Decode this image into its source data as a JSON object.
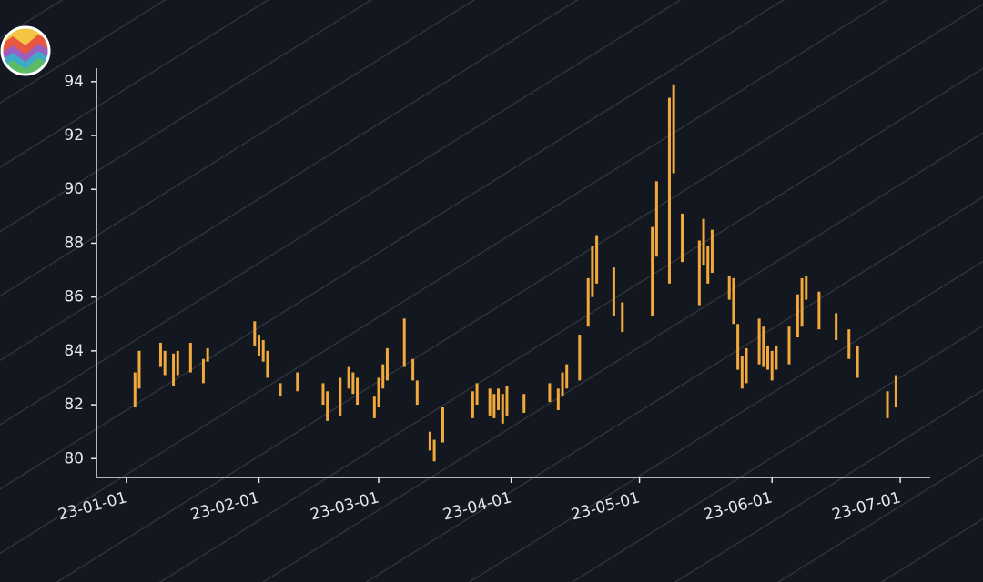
{
  "chart_data": {
    "type": "range-bar",
    "x": [
      "23-01-03",
      "23-01-04",
      "23-01-09",
      "23-01-10",
      "23-01-12",
      "23-01-13",
      "23-01-16",
      "23-01-19",
      "23-01-20",
      "23-01-31",
      "23-02-01",
      "23-02-02",
      "23-02-03",
      "23-02-06",
      "23-02-10",
      "23-02-16",
      "23-02-17",
      "23-02-20",
      "23-02-22",
      "23-02-23",
      "23-02-24",
      "23-02-28",
      "23-03-01",
      "23-03-02",
      "23-03-03",
      "23-03-07",
      "23-03-09",
      "23-03-10",
      "23-03-13",
      "23-03-14",
      "23-03-16",
      "23-03-23",
      "23-03-24",
      "23-03-27",
      "23-03-28",
      "23-03-29",
      "23-03-30",
      "23-03-31",
      "23-04-04",
      "23-04-10",
      "23-04-12",
      "23-04-13",
      "23-04-14",
      "23-04-17",
      "23-04-19",
      "23-04-20",
      "23-04-21",
      "23-04-25",
      "23-04-27",
      "23-05-04",
      "23-05-05",
      "23-05-08",
      "23-05-09",
      "23-05-11",
      "23-05-15",
      "23-05-16",
      "23-05-17",
      "23-05-18",
      "23-05-22",
      "23-05-23",
      "23-05-24",
      "23-05-25",
      "23-05-26",
      "23-05-29",
      "23-05-30",
      "23-05-31",
      "23-06-01",
      "23-06-02",
      "23-06-05",
      "23-06-07",
      "23-06-08",
      "23-06-09",
      "23-06-12",
      "23-06-16",
      "23-06-19",
      "23-06-21",
      "23-06-28",
      "23-06-30"
    ],
    "low": [
      81.9,
      82.6,
      83.4,
      83.1,
      82.7,
      83.1,
      83.2,
      82.8,
      83.6,
      84.2,
      83.8,
      83.6,
      83.0,
      82.3,
      82.5,
      82.0,
      81.4,
      81.6,
      82.6,
      82.4,
      82.0,
      81.5,
      81.9,
      82.6,
      82.9,
      83.4,
      82.9,
      82.0,
      80.3,
      79.9,
      80.6,
      81.5,
      82.0,
      81.6,
      81.5,
      81.8,
      81.3,
      81.6,
      81.7,
      82.1,
      81.8,
      82.3,
      82.6,
      82.9,
      84.9,
      86.0,
      86.5,
      85.3,
      84.7,
      85.3,
      87.5,
      86.5,
      90.6,
      87.3,
      85.7,
      87.2,
      86.5,
      86.9,
      85.9,
      85.0,
      83.3,
      82.6,
      82.8,
      83.5,
      83.4,
      83.3,
      82.9,
      83.3,
      83.5,
      84.5,
      84.9,
      85.9,
      84.8,
      84.4,
      83.7,
      83.0,
      81.5,
      81.9
    ],
    "high": [
      83.2,
      84.0,
      84.3,
      84.0,
      83.9,
      84.0,
      84.3,
      83.7,
      84.1,
      85.1,
      84.6,
      84.4,
      84.0,
      82.8,
      83.2,
      82.8,
      82.5,
      83.0,
      83.4,
      83.2,
      83.0,
      82.3,
      83.0,
      83.5,
      84.1,
      85.2,
      83.7,
      82.9,
      81.0,
      80.7,
      81.9,
      82.5,
      82.8,
      82.6,
      82.4,
      82.6,
      82.4,
      82.7,
      82.4,
      82.8,
      82.6,
      83.2,
      83.5,
      84.6,
      86.7,
      87.9,
      88.3,
      87.1,
      85.8,
      88.6,
      90.3,
      93.4,
      93.9,
      89.1,
      88.1,
      88.9,
      87.9,
      88.5,
      86.8,
      86.7,
      85.0,
      83.8,
      84.1,
      85.2,
      84.9,
      84.2,
      84.0,
      84.2,
      84.9,
      86.1,
      86.7,
      86.8,
      86.2,
      85.4,
      84.8,
      84.2,
      82.5,
      83.1
    ],
    "color": "#f2a93b",
    "xlim": [
      "22-12-25",
      "23-07-08"
    ],
    "xticks": [
      "23-01-01",
      "23-02-01",
      "23-03-01",
      "23-04-01",
      "23-05-01",
      "23-06-01",
      "23-07-01"
    ],
    "ylim": [
      79.3,
      94.5
    ],
    "yticks": [
      80,
      82,
      84,
      86,
      88,
      90,
      92,
      94
    ]
  }
}
